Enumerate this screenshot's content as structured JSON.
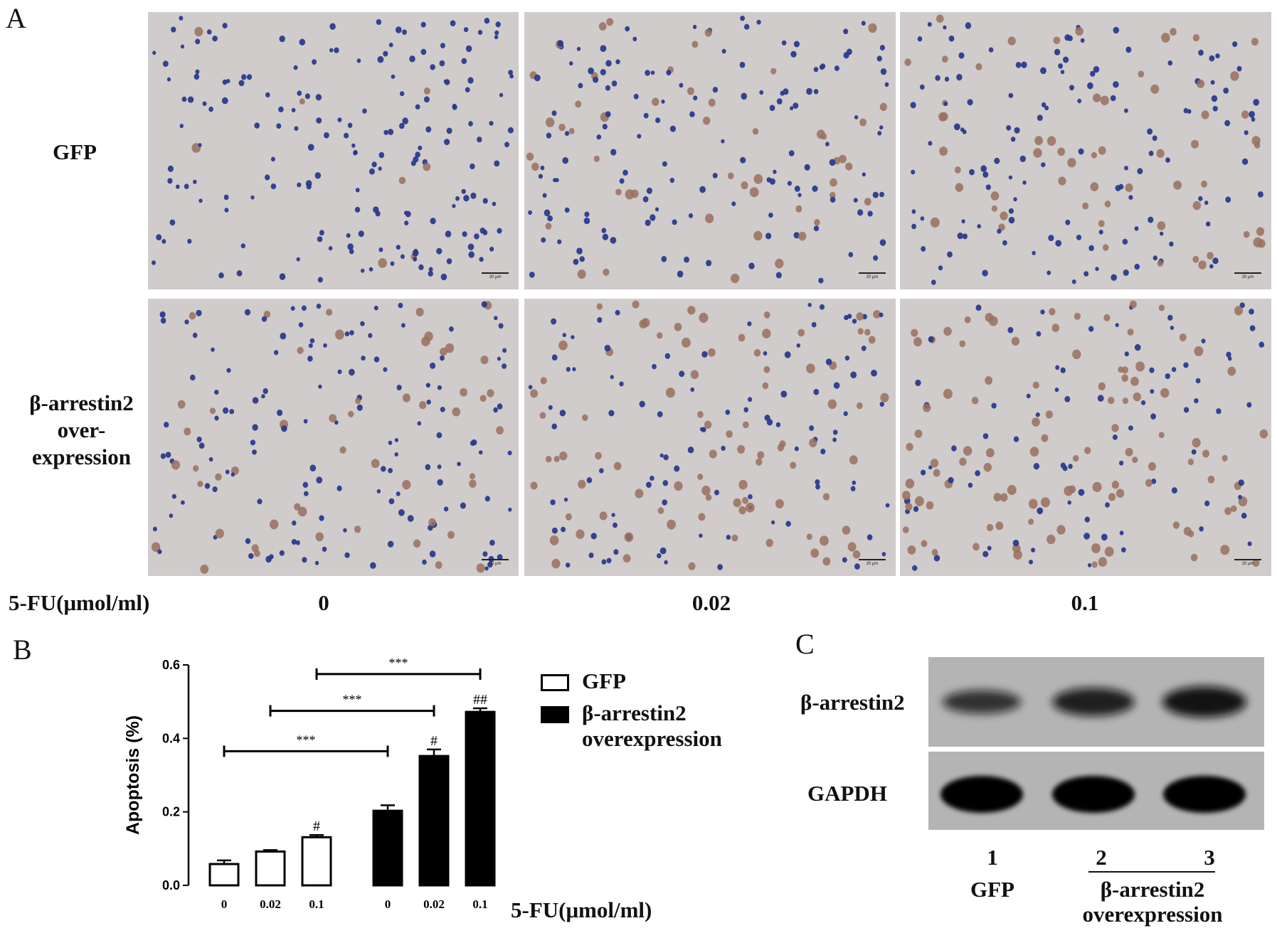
{
  "panels": {
    "A": "A",
    "B": "B",
    "C": "C"
  },
  "panelA": {
    "row_labels": [
      [
        "GFP"
      ],
      [
        "β-arrestin2",
        "over-",
        "expression"
      ]
    ],
    "x_title": "5-FU(μmol/ml)",
    "col_labels": [
      "0",
      "0.02",
      "0.1"
    ],
    "scalebar_text": "20 μm",
    "colors": {
      "background": "#cfcccb",
      "nucleus_blue": "#2b3a8c",
      "nucleus_brown": "#9a6e5e"
    }
  },
  "chart_data": {
    "type": "bar",
    "ylabel": "Apoptosis (%)",
    "xlabel": "5-FU(μmol/ml)",
    "ylim": [
      0.0,
      0.6
    ],
    "yticks": [
      "0.0",
      "0.2",
      "0.4",
      "0.6"
    ],
    "categories": [
      "0",
      "0.02",
      "0.1"
    ],
    "series": [
      {
        "name": "GFP",
        "values": [
          0.058,
          0.092,
          0.131
        ],
        "errors": [
          0.01,
          0.004,
          0.006
        ],
        "fill": "#ffffff",
        "markers": [
          "",
          "",
          "#"
        ]
      },
      {
        "name": "β-arrestin2 overexpression",
        "values": [
          0.203,
          0.352,
          0.472
        ],
        "errors": [
          0.015,
          0.018,
          0.01
        ],
        "fill": "#000000",
        "markers": [
          "",
          "#",
          "##"
        ]
      }
    ],
    "annotations": [
      "***",
      "***",
      "***"
    ],
    "legend": [
      "GFP",
      "β-arrestin2 overexpression"
    ],
    "legend_placement": "right"
  },
  "panelC": {
    "bands": [
      "β-arrestin2",
      "GAPDH"
    ],
    "lanes": [
      "1",
      "2",
      "3"
    ],
    "groups": [
      "GFP",
      "β-arrestin2",
      "overexpression"
    ],
    "band_intensity": {
      "beta_arrestin2": [
        0.5,
        0.75,
        0.9
      ],
      "GAPDH": [
        1.0,
        1.0,
        1.0
      ]
    }
  }
}
